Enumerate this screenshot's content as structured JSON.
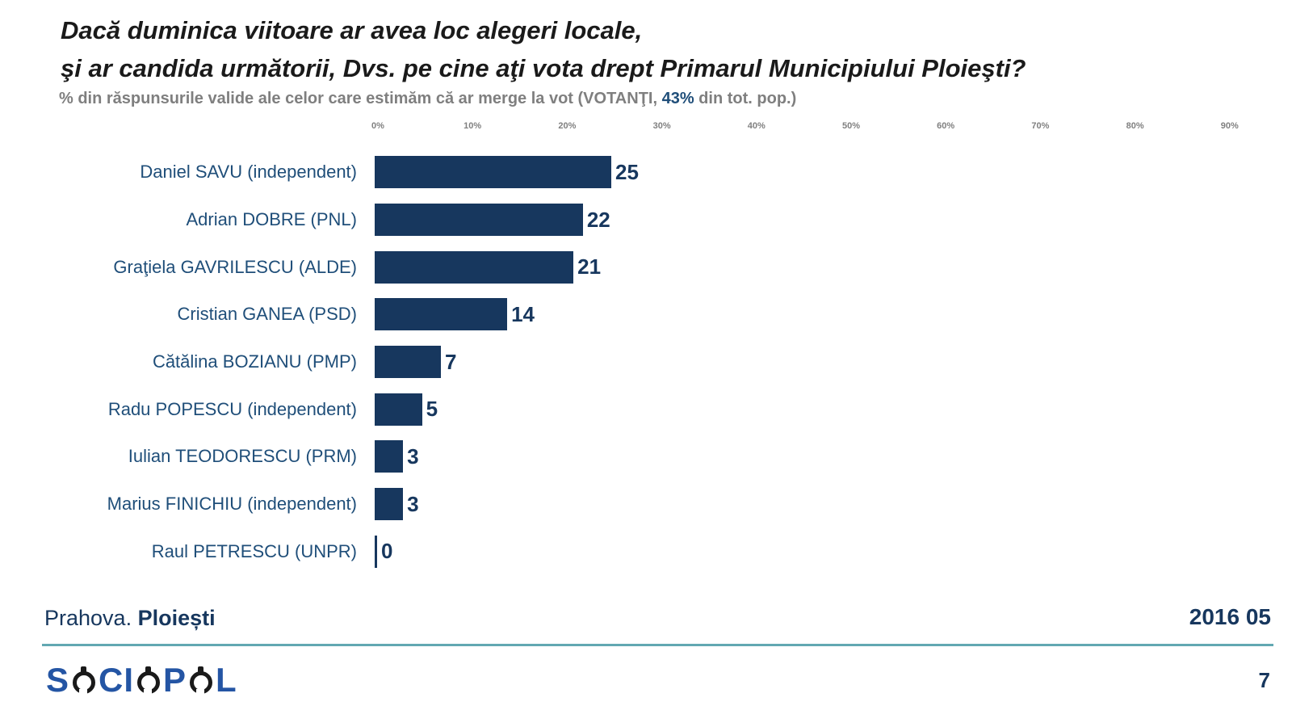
{
  "slide": {
    "title_line1": "Dacă duminica viitoare ar avea loc alegeri locale,",
    "title_line2": "şi ar candida următorii, Dvs. pe cine aţi vota drept Primarul Municipiului Ploieşti?",
    "subtitle": {
      "prefix": "% din răspunsurile valide ale celor care estimăm că ar merge la vot (VOTANŢI, ",
      "highlight": "43%",
      "suffix": " din tot. pop.)"
    },
    "footer": {
      "region": "Prahova. ",
      "city": "Ploiești",
      "date": "2016 05",
      "logo_text": "SOCIOPOL",
      "page": "7"
    }
  },
  "chart_data": {
    "type": "bar",
    "orientation": "horizontal",
    "title": "Dacă duminica viitoare ar avea loc alegeri locale, şi ar candida următorii, Dvs. pe cine aţi vota drept Primarul Municipiului Ploieşti?",
    "subtitle": "% din răspunsurile valide ale celor care estimăm că ar merge la vot (VOTANŢI, 43% din tot. pop.)",
    "categories": [
      "Daniel SAVU (independent)",
      "Adrian DOBRE (PNL)",
      "Graţiela GAVRILESCU (ALDE)",
      "Cristian GANEA (PSD)",
      "Cătălina BOZIANU (PMP)",
      "Radu POPESCU (independent)",
      "Iulian TEODORESCU (PRM)",
      "Marius FINICHIU (independent)",
      "Raul PETRESCU (UNPR)"
    ],
    "values": [
      25,
      22,
      21,
      14,
      7,
      5,
      3,
      3,
      0
    ],
    "x_ticks": [
      "0%",
      "10%",
      "20%",
      "30%",
      "40%",
      "50%",
      "60%",
      "70%",
      "80%",
      "90%"
    ],
    "xlim": [
      0,
      90
    ],
    "grid": false,
    "legend": false,
    "bar_color": "#17375e",
    "label_color": "#1f4e79",
    "tick_color": "#808080"
  }
}
